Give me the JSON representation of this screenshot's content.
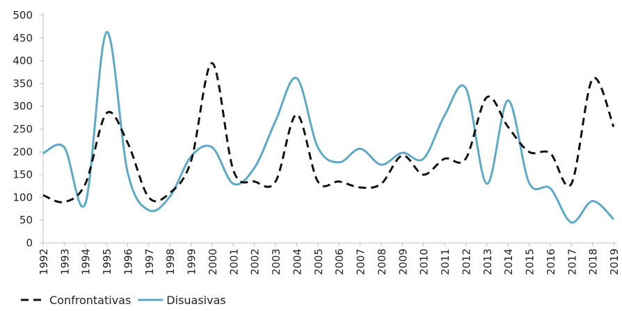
{
  "chart_data": {
    "type": "line",
    "title": "",
    "xlabel": "",
    "ylabel": "",
    "ylim": [
      0,
      500
    ],
    "yticks": [
      0,
      50,
      100,
      150,
      200,
      250,
      300,
      350,
      400,
      450,
      500
    ],
    "grid": false,
    "legend_position": "bottom-left",
    "x": [
      "1992",
      "1993",
      "1994",
      "1995",
      "1996",
      "1997",
      "1998",
      "1999",
      "2000",
      "2001",
      "2002",
      "2003",
      "2004",
      "2005",
      "2006",
      "2007",
      "2008",
      "2009",
      "2010",
      "2011",
      "2012",
      "2013",
      "2014",
      "2015",
      "2016",
      "2017",
      "2018",
      "2019"
    ],
    "series": [
      {
        "name": "Confrontativas",
        "color": "#111111",
        "style": "dashed",
        "values": [
          105,
          90,
          130,
          285,
          220,
          100,
          110,
          180,
          395,
          160,
          135,
          135,
          282,
          135,
          135,
          122,
          130,
          192,
          150,
          185,
          185,
          320,
          255,
          200,
          197,
          130,
          360,
          255
        ]
      },
      {
        "name": "Disuasivas",
        "color": "#5ba9c7",
        "style": "solid",
        "values": [
          197,
          210,
          87,
          463,
          155,
          72,
          102,
          190,
          210,
          130,
          165,
          268,
          362,
          210,
          177,
          207,
          172,
          198,
          185,
          280,
          340,
          130,
          313,
          132,
          120,
          45,
          92,
          52
        ]
      }
    ]
  }
}
